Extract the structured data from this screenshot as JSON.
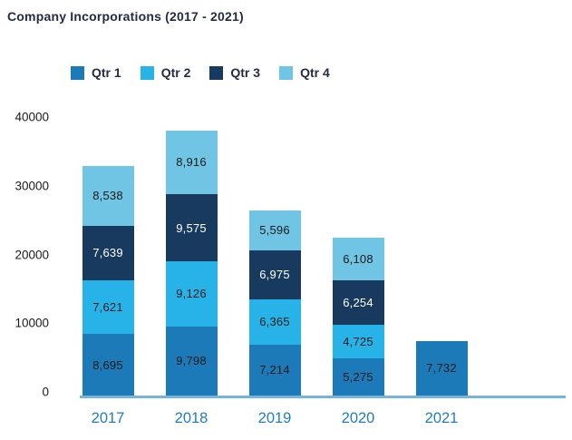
{
  "chart_data": {
    "type": "bar",
    "stacked": true,
    "title": "Company Incorporations (2017 - 2021)",
    "categories": [
      "2017",
      "2018",
      "2019",
      "2020",
      "2021"
    ],
    "series": [
      {
        "name": "Qtr 1",
        "color": "#1c7ab8",
        "label_color": "#1a1a1a",
        "values": [
          8695,
          9798,
          7214,
          5275,
          7732
        ]
      },
      {
        "name": "Qtr 2",
        "color": "#27b3e7",
        "label_color": "#1a1a1a",
        "values": [
          7621,
          9126,
          6365,
          4725,
          null
        ]
      },
      {
        "name": "Qtr 3",
        "color": "#173a5e",
        "label_color": "#ffffff",
        "values": [
          7639,
          9575,
          6975,
          6254,
          null
        ]
      },
      {
        "name": "Qtr 4",
        "color": "#70c4e4",
        "label_color": "#1a1a1a",
        "values": [
          8538,
          8916,
          5596,
          6108,
          null
        ]
      }
    ],
    "y_ticks": [
      0,
      10000,
      20000,
      30000,
      40000
    ],
    "ylim": [
      0,
      40000
    ],
    "grid": false,
    "legend_position": "top",
    "xlabel": "",
    "ylabel": ""
  },
  "colors": {
    "title_text": "#242b45",
    "legend_text": "#242b45",
    "axis_line": "#75b5d9",
    "y_tick_text": "#1a1a1a",
    "x_tick_text": "#1f7dc0",
    "background": "#ffffff"
  }
}
